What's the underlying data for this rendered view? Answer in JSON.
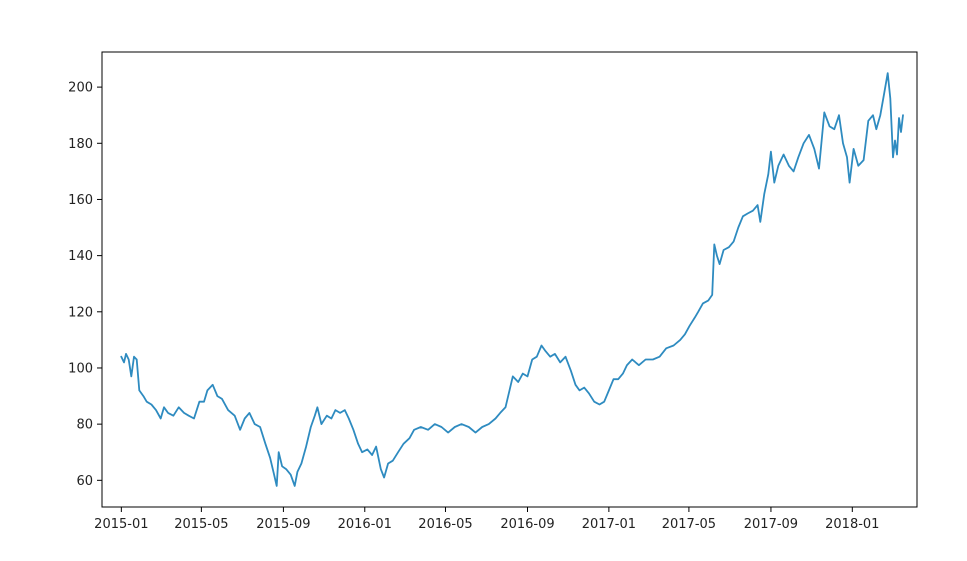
{
  "chart_data": {
    "type": "line",
    "title": "",
    "xlabel": "",
    "ylabel": "",
    "xlim": [
      "2014-12-03",
      "2018-04-08"
    ],
    "ylim": [
      50.5,
      212.5
    ],
    "grid": false,
    "legend": "none",
    "x_ticks": [
      "2015-01",
      "2015-05",
      "2015-09",
      "2016-01",
      "2016-05",
      "2016-09",
      "2017-01",
      "2017-05",
      "2017-09",
      "2018-01"
    ],
    "y_ticks": [
      "60",
      "80",
      "100",
      "120",
      "140",
      "160",
      "180",
      "200"
    ],
    "series": [
      {
        "color": "#2e8bc0",
        "points": [
          [
            "2015-01-01",
            104
          ],
          [
            "2015-01-05",
            102
          ],
          [
            "2015-01-08",
            105
          ],
          [
            "2015-01-12",
            103
          ],
          [
            "2015-01-16",
            97
          ],
          [
            "2015-01-20",
            104
          ],
          [
            "2015-01-24",
            103
          ],
          [
            "2015-01-28",
            92
          ],
          [
            "2015-02-03",
            90
          ],
          [
            "2015-02-08",
            88
          ],
          [
            "2015-02-15",
            87
          ],
          [
            "2015-02-22",
            85
          ],
          [
            "2015-03-01",
            82
          ],
          [
            "2015-03-06",
            86
          ],
          [
            "2015-03-12",
            84
          ],
          [
            "2015-03-20",
            83
          ],
          [
            "2015-03-28",
            86
          ],
          [
            "2015-04-05",
            84
          ],
          [
            "2015-04-12",
            83
          ],
          [
            "2015-04-20",
            82
          ],
          [
            "2015-04-28",
            88
          ],
          [
            "2015-05-05",
            88
          ],
          [
            "2015-05-10",
            92
          ],
          [
            "2015-05-18",
            94
          ],
          [
            "2015-05-25",
            90
          ],
          [
            "2015-06-01",
            89
          ],
          [
            "2015-06-10",
            85
          ],
          [
            "2015-06-20",
            83
          ],
          [
            "2015-06-28",
            78
          ],
          [
            "2015-07-05",
            82
          ],
          [
            "2015-07-12",
            84
          ],
          [
            "2015-07-20",
            80
          ],
          [
            "2015-07-28",
            79
          ],
          [
            "2015-08-05",
            73
          ],
          [
            "2015-08-12",
            68
          ],
          [
            "2015-08-18",
            62
          ],
          [
            "2015-08-22",
            58
          ],
          [
            "2015-08-25",
            70
          ],
          [
            "2015-08-30",
            65
          ],
          [
            "2015-09-05",
            64
          ],
          [
            "2015-09-12",
            62
          ],
          [
            "2015-09-18",
            58
          ],
          [
            "2015-09-22",
            63
          ],
          [
            "2015-09-28",
            66
          ],
          [
            "2015-10-05",
            72
          ],
          [
            "2015-10-12",
            79
          ],
          [
            "2015-10-18",
            83
          ],
          [
            "2015-10-22",
            86
          ],
          [
            "2015-10-28",
            80
          ],
          [
            "2015-11-05",
            83
          ],
          [
            "2015-11-12",
            82
          ],
          [
            "2015-11-18",
            85
          ],
          [
            "2015-11-25",
            84
          ],
          [
            "2015-12-02",
            85
          ],
          [
            "2015-12-08",
            82
          ],
          [
            "2015-12-15",
            78
          ],
          [
            "2015-12-22",
            73
          ],
          [
            "2015-12-28",
            70
          ],
          [
            "2016-01-05",
            71
          ],
          [
            "2016-01-12",
            69
          ],
          [
            "2016-01-18",
            72
          ],
          [
            "2016-01-25",
            64
          ],
          [
            "2016-01-30",
            61
          ],
          [
            "2016-02-05",
            66
          ],
          [
            "2016-02-12",
            67
          ],
          [
            "2016-02-20",
            70
          ],
          [
            "2016-02-28",
            73
          ],
          [
            "2016-03-08",
            75
          ],
          [
            "2016-03-15",
            78
          ],
          [
            "2016-03-25",
            79
          ],
          [
            "2016-04-05",
            78
          ],
          [
            "2016-04-15",
            80
          ],
          [
            "2016-04-25",
            79
          ],
          [
            "2016-05-05",
            77
          ],
          [
            "2016-05-15",
            79
          ],
          [
            "2016-05-25",
            80
          ],
          [
            "2016-06-05",
            79
          ],
          [
            "2016-06-15",
            77
          ],
          [
            "2016-06-25",
            79
          ],
          [
            "2016-07-05",
            80
          ],
          [
            "2016-07-15",
            82
          ],
          [
            "2016-07-22",
            84
          ],
          [
            "2016-07-30",
            86
          ],
          [
            "2016-08-05",
            92
          ],
          [
            "2016-08-10",
            97
          ],
          [
            "2016-08-18",
            95
          ],
          [
            "2016-08-25",
            98
          ],
          [
            "2016-09-01",
            97
          ],
          [
            "2016-09-08",
            103
          ],
          [
            "2016-09-15",
            104
          ],
          [
            "2016-09-22",
            108
          ],
          [
            "2016-09-28",
            106
          ],
          [
            "2016-10-05",
            104
          ],
          [
            "2016-10-12",
            105
          ],
          [
            "2016-10-20",
            102
          ],
          [
            "2016-10-28",
            104
          ],
          [
            "2016-11-05",
            99
          ],
          [
            "2016-11-12",
            94
          ],
          [
            "2016-11-18",
            92
          ],
          [
            "2016-11-25",
            93
          ],
          [
            "2016-12-02",
            91
          ],
          [
            "2016-12-10",
            88
          ],
          [
            "2016-12-18",
            87
          ],
          [
            "2016-12-25",
            88
          ],
          [
            "2017-01-01",
            92
          ],
          [
            "2017-01-08",
            96
          ],
          [
            "2017-01-15",
            96
          ],
          [
            "2017-01-22",
            98
          ],
          [
            "2017-01-28",
            101
          ],
          [
            "2017-02-05",
            103
          ],
          [
            "2017-02-15",
            101
          ],
          [
            "2017-02-25",
            103
          ],
          [
            "2017-03-08",
            103
          ],
          [
            "2017-03-18",
            104
          ],
          [
            "2017-03-28",
            107
          ],
          [
            "2017-04-08",
            108
          ],
          [
            "2017-04-18",
            110
          ],
          [
            "2017-04-25",
            112
          ],
          [
            "2017-05-02",
            115
          ],
          [
            "2017-05-10",
            118
          ],
          [
            "2017-05-15",
            120
          ],
          [
            "2017-05-22",
            123
          ],
          [
            "2017-05-30",
            124
          ],
          [
            "2017-06-05",
            126
          ],
          [
            "2017-06-08",
            144
          ],
          [
            "2017-06-12",
            140
          ],
          [
            "2017-06-16",
            137
          ],
          [
            "2017-06-22",
            142
          ],
          [
            "2017-06-30",
            143
          ],
          [
            "2017-07-07",
            145
          ],
          [
            "2017-07-14",
            150
          ],
          [
            "2017-07-21",
            154
          ],
          [
            "2017-07-28",
            155
          ],
          [
            "2017-08-05",
            156
          ],
          [
            "2017-08-12",
            158
          ],
          [
            "2017-08-16",
            152
          ],
          [
            "2017-08-22",
            162
          ],
          [
            "2017-08-28",
            169
          ],
          [
            "2017-09-01",
            177
          ],
          [
            "2017-09-06",
            166
          ],
          [
            "2017-09-12",
            172
          ],
          [
            "2017-09-20",
            176
          ],
          [
            "2017-09-28",
            172
          ],
          [
            "2017-10-05",
            170
          ],
          [
            "2017-10-12",
            175
          ],
          [
            "2017-10-20",
            180
          ],
          [
            "2017-10-28",
            183
          ],
          [
            "2017-11-05",
            178
          ],
          [
            "2017-11-12",
            171
          ],
          [
            "2017-11-20",
            191
          ],
          [
            "2017-11-28",
            186
          ],
          [
            "2017-12-05",
            185
          ],
          [
            "2017-12-12",
            190
          ],
          [
            "2017-12-18",
            180
          ],
          [
            "2017-12-24",
            175
          ],
          [
            "2017-12-28",
            166
          ],
          [
            "2018-01-03",
            178
          ],
          [
            "2018-01-10",
            172
          ],
          [
            "2018-01-18",
            174
          ],
          [
            "2018-01-25",
            188
          ],
          [
            "2018-02-01",
            190
          ],
          [
            "2018-02-06",
            185
          ],
          [
            "2018-02-12",
            190
          ],
          [
            "2018-02-18",
            198
          ],
          [
            "2018-02-23",
            205
          ],
          [
            "2018-02-27",
            196
          ],
          [
            "2018-03-03",
            175
          ],
          [
            "2018-03-06",
            181
          ],
          [
            "2018-03-09",
            176
          ],
          [
            "2018-03-12",
            189
          ],
          [
            "2018-03-15",
            184
          ],
          [
            "2018-03-18",
            190
          ]
        ]
      }
    ]
  }
}
